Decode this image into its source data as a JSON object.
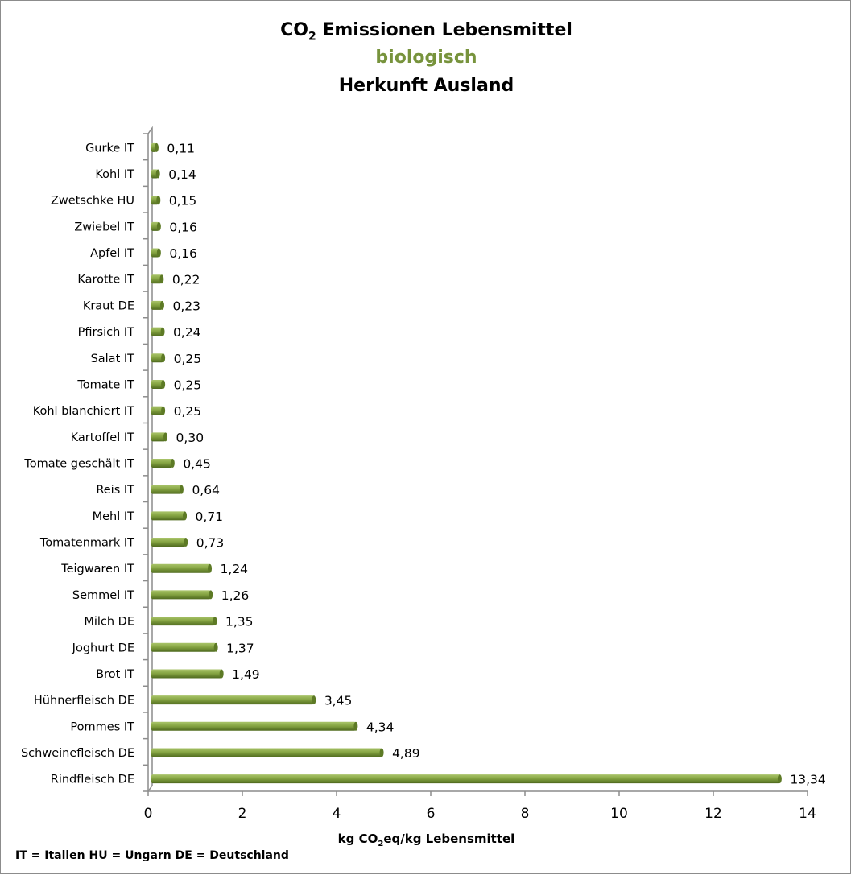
{
  "chart_data": {
    "type": "bar",
    "orientation": "horizontal",
    "title": "CO2 Emissionen Lebensmittel",
    "subtitle": "biologisch",
    "subtitle2": "Herkunft Ausland",
    "xlabel": "kg CO2eq/kg Lebensmittel",
    "ylabel": "",
    "xlim": [
      0,
      14
    ],
    "xticks": [
      "0",
      "2",
      "4",
      "6",
      "8",
      "10",
      "12",
      "14"
    ],
    "grid": false,
    "categories": [
      "Gurke IT",
      "Kohl IT",
      "Zwetschke HU",
      "Zwiebel IT",
      "Apfel IT",
      "Karotte IT",
      "Kraut DE",
      "Pfirsich IT",
      "Salat IT",
      "Tomate IT",
      "Kohl blanchiert IT",
      "Kartoffel IT",
      "Tomate geschält IT",
      "Reis IT",
      "Mehl IT",
      "Tomatenmark IT",
      "Teigwaren IT",
      "Semmel IT",
      "Milch DE",
      "Joghurt DE",
      "Brot IT",
      "Hühnerfleisch DE",
      "Pommes IT",
      "Schweinefleisch DE",
      "Rindfleisch DE"
    ],
    "values": [
      0.11,
      0.14,
      0.15,
      0.16,
      0.16,
      0.22,
      0.23,
      0.24,
      0.25,
      0.25,
      0.25,
      0.3,
      0.45,
      0.64,
      0.71,
      0.73,
      1.24,
      1.26,
      1.35,
      1.37,
      1.49,
      3.45,
      4.34,
      4.89,
      13.34
    ],
    "data_labels": [
      "0,11",
      "0,14",
      "0,15",
      "0,16",
      "0,16",
      "0,22",
      "0,23",
      "0,24",
      "0,25",
      "0,25",
      "0,25",
      "0,30",
      "0,45",
      "0,64",
      "0,71",
      "0,73",
      "1,24",
      "1,26",
      "1,35",
      "1,37",
      "1,49",
      "3,45",
      "4,34",
      "4,89",
      "13,34"
    ],
    "bar_color": "#7a9a3a",
    "subtitle_color": "#77933c",
    "footnote": "IT = Italien HU = Ungarn DE = Deutschland"
  }
}
